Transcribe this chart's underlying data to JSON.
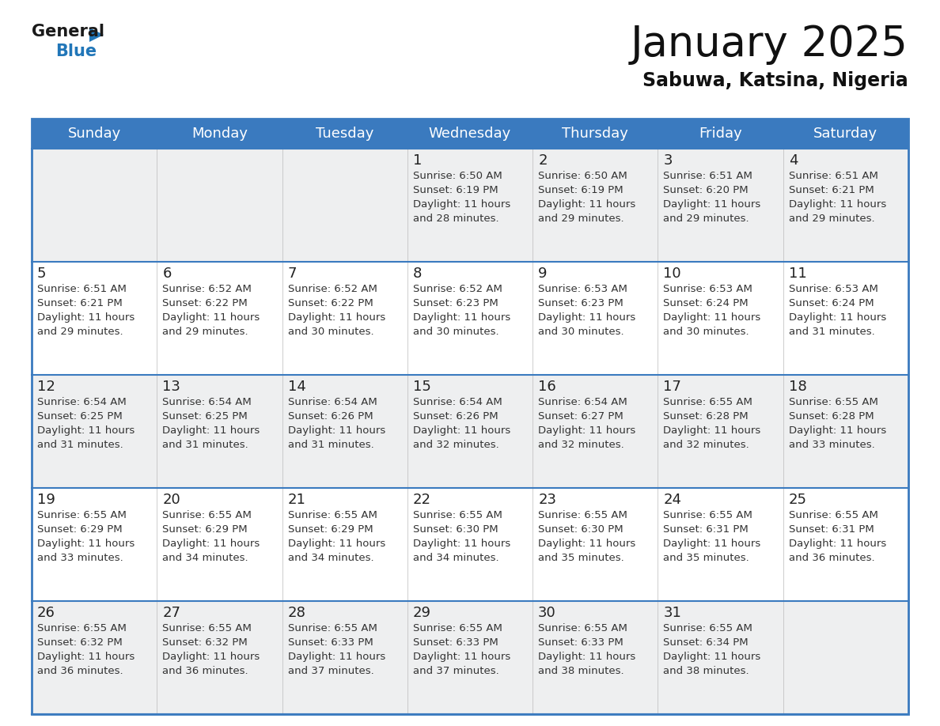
{
  "title": "January 2025",
  "subtitle": "Sabuwa, Katsina, Nigeria",
  "header_color": "#3a7abf",
  "header_text_color": "#ffffff",
  "bg_color": "#ffffff",
  "row_colors": [
    "#eeeff0",
    "#ffffff"
  ],
  "border_color": "#3a7abf",
  "text_color": "#333333",
  "day_num_color": "#222222",
  "days_of_week": [
    "Sunday",
    "Monday",
    "Tuesday",
    "Wednesday",
    "Thursday",
    "Friday",
    "Saturday"
  ],
  "title_fontsize": 38,
  "subtitle_fontsize": 17,
  "day_header_fontsize": 13,
  "cell_day_fontsize": 13,
  "cell_text_fontsize": 9.5,
  "calendar_data": [
    [
      {
        "day": "",
        "sunrise": "",
        "sunset": "",
        "daylight": ""
      },
      {
        "day": "",
        "sunrise": "",
        "sunset": "",
        "daylight": ""
      },
      {
        "day": "",
        "sunrise": "",
        "sunset": "",
        "daylight": ""
      },
      {
        "day": "1",
        "sunrise": "6:50 AM",
        "sunset": "6:19 PM",
        "daylight_h": "11 hours",
        "daylight_m": "and 28 minutes."
      },
      {
        "day": "2",
        "sunrise": "6:50 AM",
        "sunset": "6:19 PM",
        "daylight_h": "11 hours",
        "daylight_m": "and 29 minutes."
      },
      {
        "day": "3",
        "sunrise": "6:51 AM",
        "sunset": "6:20 PM",
        "daylight_h": "11 hours",
        "daylight_m": "and 29 minutes."
      },
      {
        "day": "4",
        "sunrise": "6:51 AM",
        "sunset": "6:21 PM",
        "daylight_h": "11 hours",
        "daylight_m": "and 29 minutes."
      }
    ],
    [
      {
        "day": "5",
        "sunrise": "6:51 AM",
        "sunset": "6:21 PM",
        "daylight_h": "11 hours",
        "daylight_m": "and 29 minutes."
      },
      {
        "day": "6",
        "sunrise": "6:52 AM",
        "sunset": "6:22 PM",
        "daylight_h": "11 hours",
        "daylight_m": "and 29 minutes."
      },
      {
        "day": "7",
        "sunrise": "6:52 AM",
        "sunset": "6:22 PM",
        "daylight_h": "11 hours",
        "daylight_m": "and 30 minutes."
      },
      {
        "day": "8",
        "sunrise": "6:52 AM",
        "sunset": "6:23 PM",
        "daylight_h": "11 hours",
        "daylight_m": "and 30 minutes."
      },
      {
        "day": "9",
        "sunrise": "6:53 AM",
        "sunset": "6:23 PM",
        "daylight_h": "11 hours",
        "daylight_m": "and 30 minutes."
      },
      {
        "day": "10",
        "sunrise": "6:53 AM",
        "sunset": "6:24 PM",
        "daylight_h": "11 hours",
        "daylight_m": "and 30 minutes."
      },
      {
        "day": "11",
        "sunrise": "6:53 AM",
        "sunset": "6:24 PM",
        "daylight_h": "11 hours",
        "daylight_m": "and 31 minutes."
      }
    ],
    [
      {
        "day": "12",
        "sunrise": "6:54 AM",
        "sunset": "6:25 PM",
        "daylight_h": "11 hours",
        "daylight_m": "and 31 minutes."
      },
      {
        "day": "13",
        "sunrise": "6:54 AM",
        "sunset": "6:25 PM",
        "daylight_h": "11 hours",
        "daylight_m": "and 31 minutes."
      },
      {
        "day": "14",
        "sunrise": "6:54 AM",
        "sunset": "6:26 PM",
        "daylight_h": "11 hours",
        "daylight_m": "and 31 minutes."
      },
      {
        "day": "15",
        "sunrise": "6:54 AM",
        "sunset": "6:26 PM",
        "daylight_h": "11 hours",
        "daylight_m": "and 32 minutes."
      },
      {
        "day": "16",
        "sunrise": "6:54 AM",
        "sunset": "6:27 PM",
        "daylight_h": "11 hours",
        "daylight_m": "and 32 minutes."
      },
      {
        "day": "17",
        "sunrise": "6:55 AM",
        "sunset": "6:28 PM",
        "daylight_h": "11 hours",
        "daylight_m": "and 32 minutes."
      },
      {
        "day": "18",
        "sunrise": "6:55 AM",
        "sunset": "6:28 PM",
        "daylight_h": "11 hours",
        "daylight_m": "and 33 minutes."
      }
    ],
    [
      {
        "day": "19",
        "sunrise": "6:55 AM",
        "sunset": "6:29 PM",
        "daylight_h": "11 hours",
        "daylight_m": "and 33 minutes."
      },
      {
        "day": "20",
        "sunrise": "6:55 AM",
        "sunset": "6:29 PM",
        "daylight_h": "11 hours",
        "daylight_m": "and 34 minutes."
      },
      {
        "day": "21",
        "sunrise": "6:55 AM",
        "sunset": "6:29 PM",
        "daylight_h": "11 hours",
        "daylight_m": "and 34 minutes."
      },
      {
        "day": "22",
        "sunrise": "6:55 AM",
        "sunset": "6:30 PM",
        "daylight_h": "11 hours",
        "daylight_m": "and 34 minutes."
      },
      {
        "day": "23",
        "sunrise": "6:55 AM",
        "sunset": "6:30 PM",
        "daylight_h": "11 hours",
        "daylight_m": "and 35 minutes."
      },
      {
        "day": "24",
        "sunrise": "6:55 AM",
        "sunset": "6:31 PM",
        "daylight_h": "11 hours",
        "daylight_m": "and 35 minutes."
      },
      {
        "day": "25",
        "sunrise": "6:55 AM",
        "sunset": "6:31 PM",
        "daylight_h": "11 hours",
        "daylight_m": "and 36 minutes."
      }
    ],
    [
      {
        "day": "26",
        "sunrise": "6:55 AM",
        "sunset": "6:32 PM",
        "daylight_h": "11 hours",
        "daylight_m": "and 36 minutes."
      },
      {
        "day": "27",
        "sunrise": "6:55 AM",
        "sunset": "6:32 PM",
        "daylight_h": "11 hours",
        "daylight_m": "and 36 minutes."
      },
      {
        "day": "28",
        "sunrise": "6:55 AM",
        "sunset": "6:33 PM",
        "daylight_h": "11 hours",
        "daylight_m": "and 37 minutes."
      },
      {
        "day": "29",
        "sunrise": "6:55 AM",
        "sunset": "6:33 PM",
        "daylight_h": "11 hours",
        "daylight_m": "and 37 minutes."
      },
      {
        "day": "30",
        "sunrise": "6:55 AM",
        "sunset": "6:33 PM",
        "daylight_h": "11 hours",
        "daylight_m": "and 38 minutes."
      },
      {
        "day": "31",
        "sunrise": "6:55 AM",
        "sunset": "6:34 PM",
        "daylight_h": "11 hours",
        "daylight_m": "and 38 minutes."
      },
      {
        "day": "",
        "sunrise": "",
        "sunset": "",
        "daylight_h": "",
        "daylight_m": ""
      }
    ]
  ]
}
